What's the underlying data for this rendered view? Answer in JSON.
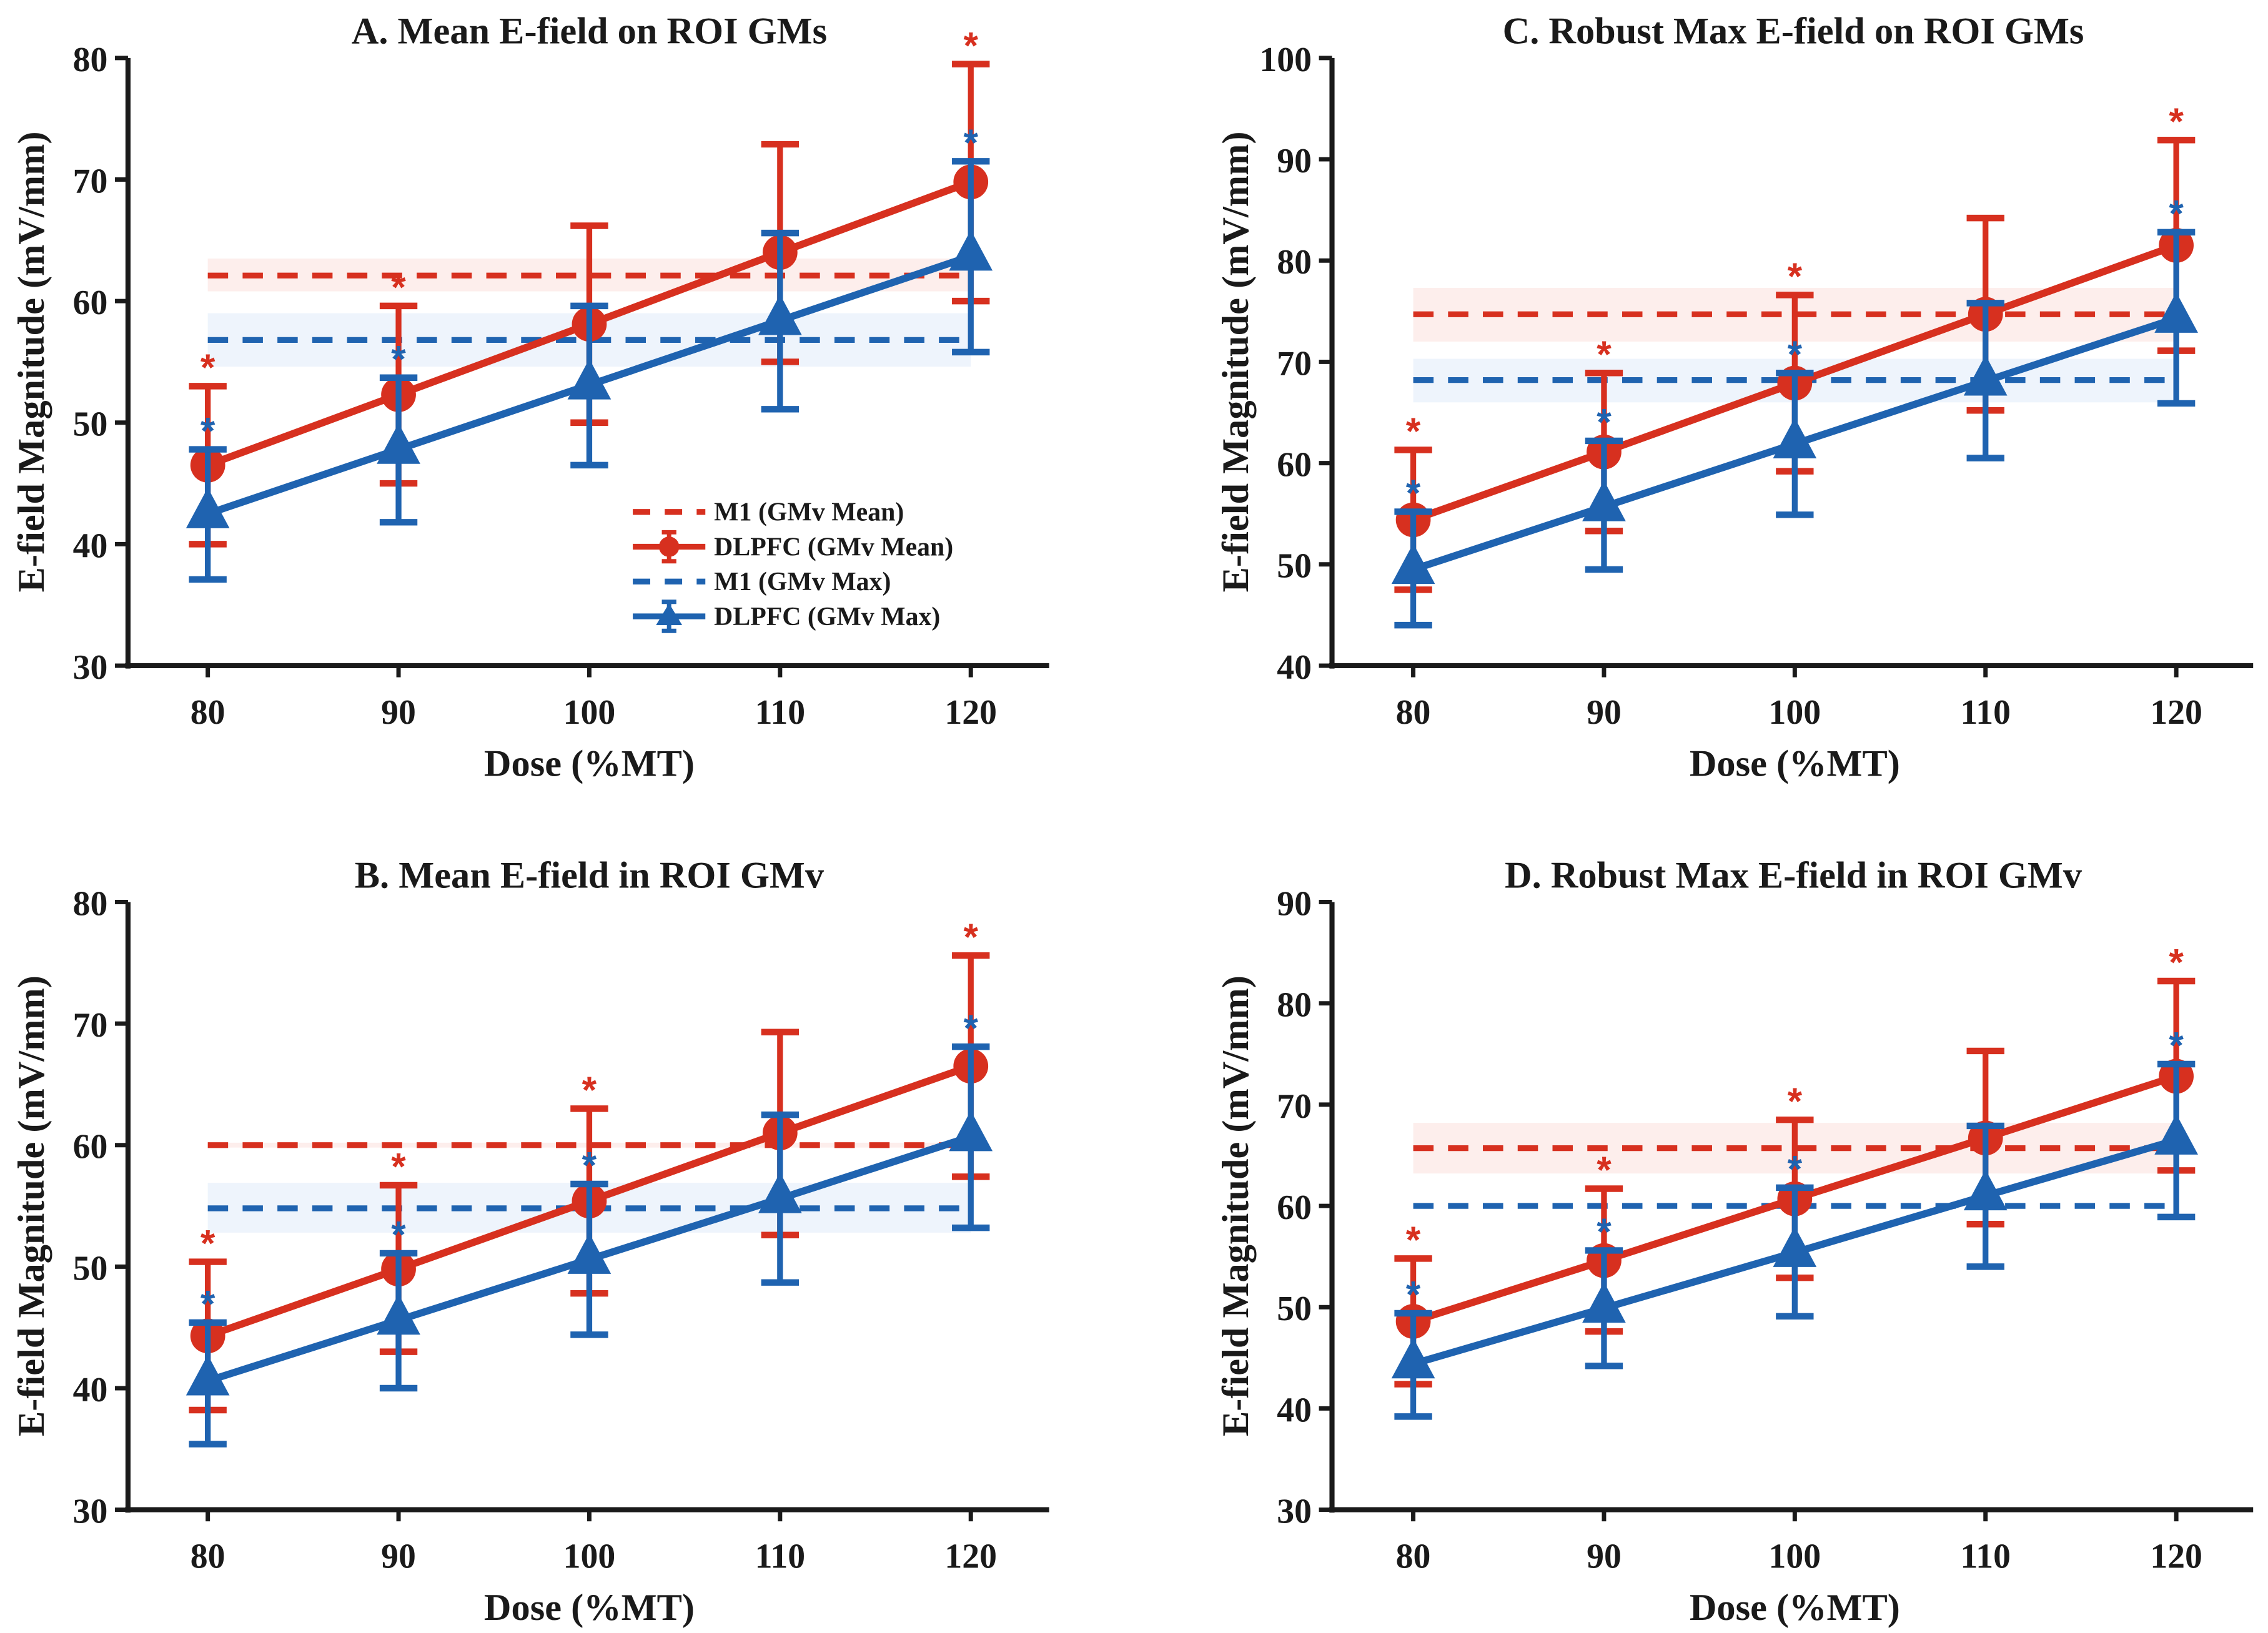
{
  "chart_data": [
    {
      "type": "line",
      "panel": "A",
      "title": "A. Mean E-field on ROI GMs",
      "xlabel": "Dose (%MT)",
      "ylabel": "E-field Magnitude (mV/mm)",
      "x": [
        80,
        90,
        100,
        110,
        120
      ],
      "xticks": [
        "80",
        "90",
        "100",
        "110",
        "120"
      ],
      "ylim": [
        30,
        80
      ],
      "yticks": [
        "30",
        "40",
        "50",
        "60",
        "70",
        "80"
      ],
      "grid": false,
      "legend": "center-right",
      "series": [
        {
          "name": "M1 (GMv Mean)",
          "kind": "hline",
          "color": "#d7301f",
          "value": 62.1,
          "band": [
            60.8,
            63.5
          ]
        },
        {
          "name": "DLPFC (GMv Mean)",
          "kind": "errorbar",
          "marker": "circle",
          "color": "#d7301f",
          "values": [
            46.5,
            52.3,
            58.1,
            64.0,
            69.8
          ],
          "upper": [
            53.0,
            59.6,
            66.2,
            72.9,
            79.5
          ],
          "lower": [
            40.0,
            45.0,
            50.0,
            55.0,
            60.0
          ],
          "significant": [
            true,
            true,
            false,
            false,
            true
          ]
        },
        {
          "name": "M1 (GMv Max)",
          "kind": "hline",
          "color": "#1f63b0",
          "value": 56.8,
          "band": [
            54.6,
            59.0
          ]
        },
        {
          "name": "DLPFC (GMv Max)",
          "kind": "errorbar",
          "marker": "triangle",
          "color": "#1f63b0",
          "values": [
            42.5,
            47.8,
            53.1,
            58.4,
            63.7
          ],
          "upper": [
            47.8,
            53.7,
            59.6,
            65.6,
            71.5
          ],
          "lower": [
            37.1,
            41.8,
            46.5,
            51.1,
            55.8
          ],
          "significant": [
            true,
            true,
            false,
            false,
            true
          ]
        }
      ],
      "annotations": [
        "*"
      ]
    },
    {
      "type": "line",
      "panel": "C",
      "title": "C. Robust Max E-field on ROI GMs",
      "xlabel": "Dose (%MT)",
      "ylabel": "E-field Magnitude (mV/mm)",
      "x": [
        80,
        90,
        100,
        110,
        120
      ],
      "xticks": [
        "80",
        "90",
        "100",
        "110",
        "120"
      ],
      "ylim": [
        40,
        100
      ],
      "yticks": [
        "40",
        "50",
        "60",
        "70",
        "80",
        "90",
        "100"
      ],
      "grid": false,
      "legend": "none",
      "series": [
        {
          "name": "M1 (GMv Mean)",
          "kind": "hline",
          "color": "#d7301f",
          "value": 74.7,
          "band": [
            72.0,
            77.3
          ]
        },
        {
          "name": "DLPFC (GMv Mean)",
          "kind": "errorbar",
          "marker": "circle",
          "color": "#d7301f",
          "values": [
            54.4,
            61.1,
            67.9,
            74.7,
            81.5
          ],
          "upper": [
            61.3,
            68.9,
            76.6,
            84.2,
            91.9
          ],
          "lower": [
            47.5,
            53.3,
            59.2,
            65.2,
            71.1
          ],
          "significant": [
            true,
            true,
            true,
            false,
            true
          ]
        },
        {
          "name": "M1 (GMv Max)",
          "kind": "hline",
          "color": "#1f63b0",
          "value": 68.2,
          "band": [
            66.0,
            70.3
          ]
        },
        {
          "name": "DLPFC (GMv Max)",
          "kind": "errorbar",
          "marker": "triangle",
          "color": "#1f63b0",
          "values": [
            49.5,
            55.7,
            61.9,
            68.1,
            74.3
          ],
          "upper": [
            55.2,
            62.2,
            68.9,
            75.8,
            82.8
          ],
          "lower": [
            44.0,
            49.5,
            54.9,
            60.5,
            65.9
          ],
          "significant": [
            true,
            true,
            true,
            false,
            true
          ]
        }
      ],
      "annotations": [
        "*"
      ]
    },
    {
      "type": "line",
      "panel": "B",
      "title": "B. Mean E-field in ROI GMv",
      "xlabel": "Dose (%MT)",
      "ylabel": "E-field Magnitude (mV/mm)",
      "x": [
        80,
        90,
        100,
        110,
        120
      ],
      "xticks": [
        "80",
        "90",
        "100",
        "110",
        "120"
      ],
      "ylim": [
        30,
        80
      ],
      "yticks": [
        "30",
        "40",
        "50",
        "60",
        "70",
        "80"
      ],
      "grid": false,
      "legend": "none",
      "series": [
        {
          "name": "M1 (GMv Mean)",
          "kind": "hline",
          "color": "#d7301f",
          "value": 60.0,
          "band": [
            59.8,
            60.2
          ]
        },
        {
          "name": "DLPFC (GMv Mean)",
          "kind": "errorbar",
          "marker": "circle",
          "color": "#d7301f",
          "values": [
            44.3,
            49.8,
            55.4,
            61.0,
            66.5
          ],
          "upper": [
            50.4,
            56.7,
            63.0,
            69.3,
            75.6
          ],
          "lower": [
            38.2,
            43.0,
            47.8,
            52.6,
            57.4
          ],
          "significant": [
            true,
            true,
            true,
            false,
            true
          ]
        },
        {
          "name": "M1 (GMv Max)",
          "kind": "hline",
          "color": "#1f63b0",
          "value": 54.8,
          "band": [
            52.8,
            56.9
          ]
        },
        {
          "name": "DLPFC (GMv Max)",
          "kind": "errorbar",
          "marker": "triangle",
          "color": "#1f63b0",
          "values": [
            40.6,
            45.6,
            50.6,
            55.6,
            60.7
          ],
          "upper": [
            45.4,
            51.1,
            56.8,
            62.5,
            68.1
          ],
          "lower": [
            35.4,
            40.0,
            44.4,
            48.7,
            53.2
          ],
          "significant": [
            true,
            true,
            true,
            false,
            true
          ]
        }
      ],
      "annotations": [
        "*"
      ]
    },
    {
      "type": "line",
      "panel": "D",
      "title": "D. Robust Max E-field in ROI GMv",
      "xlabel": "Dose (%MT)",
      "ylabel": "E-field Magnitude (mV/mm)",
      "x": [
        80,
        90,
        100,
        110,
        120
      ],
      "xticks": [
        "80",
        "90",
        "100",
        "110",
        "120"
      ],
      "ylim": [
        30,
        90
      ],
      "yticks": [
        "30",
        "40",
        "50",
        "60",
        "70",
        "80",
        "90"
      ],
      "grid": false,
      "legend": "none",
      "series": [
        {
          "name": "M1 (GMv Mean)",
          "kind": "hline",
          "color": "#d7301f",
          "value": 65.7,
          "band": [
            63.2,
            68.2
          ]
        },
        {
          "name": "DLPFC (GMv Mean)",
          "kind": "errorbar",
          "marker": "circle",
          "color": "#d7301f",
          "values": [
            48.6,
            54.6,
            60.7,
            66.7,
            72.8
          ],
          "upper": [
            54.8,
            61.7,
            68.5,
            75.3,
            82.2
          ],
          "lower": [
            42.4,
            47.6,
            52.9,
            58.2,
            63.5
          ],
          "significant": [
            true,
            true,
            true,
            false,
            true
          ]
        },
        {
          "name": "M1 (GMv Max)",
          "kind": "hline",
          "color": "#1f63b0",
          "value": 60.0,
          "band": [
            59.9,
            60.1
          ]
        },
        {
          "name": "DLPFC (GMv Max)",
          "kind": "errorbar",
          "marker": "triangle",
          "color": "#1f63b0",
          "values": [
            44.4,
            49.9,
            55.4,
            61.0,
            66.5
          ],
          "upper": [
            49.4,
            55.6,
            61.8,
            67.9,
            74.0
          ],
          "lower": [
            39.2,
            44.2,
            49.1,
            54.0,
            58.9
          ],
          "significant": [
            true,
            true,
            true,
            false,
            true
          ]
        }
      ],
      "annotations": [
        "*"
      ]
    }
  ],
  "colors": {
    "red": "#d7301f",
    "blue": "#1f63b0",
    "red_band": "#fdeeec",
    "blue_band": "#eef4fc",
    "axis": "#1a1a1a"
  },
  "significance_marker": "*"
}
